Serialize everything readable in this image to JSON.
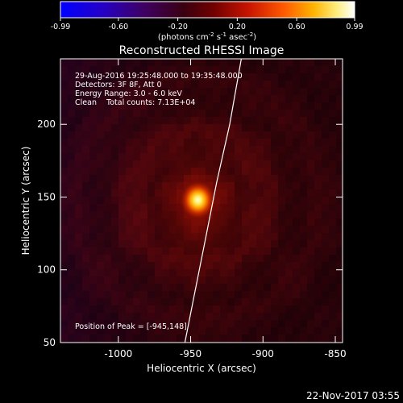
{
  "colorbar": {
    "ticks": [
      "-0.99",
      "-0.60",
      "-0.20",
      "0.20",
      "0.60",
      "0.99"
    ],
    "unit_parts": [
      "(photons cm",
      "-2",
      " s",
      "-1",
      " asec",
      "-2",
      ")"
    ]
  },
  "footer": {
    "timestamp": "22-Nov-2017 03:55"
  },
  "chart_data": {
    "type": "heatmap",
    "title": "Reconstructed RHESSI Image",
    "xlabel": "Heliocentric X (arcsec)",
    "ylabel": "Heliocentric Y (arcsec)",
    "xlim": [
      -1040,
      -845
    ],
    "ylim": [
      50,
      245
    ],
    "xticks": [
      "-1000",
      "-950",
      "-900",
      "-850"
    ],
    "xtick_values": [
      -1000,
      -950,
      -900,
      -850
    ],
    "yticks": [
      "50",
      "100",
      "150",
      "200"
    ],
    "ytick_values": [
      50,
      100,
      150,
      200
    ],
    "value_range": [
      -0.99,
      0.99
    ],
    "colormap": "IDL color table 3 (red temperature)",
    "source_peak": {
      "x": -945,
      "y": 148,
      "value": 0.99
    },
    "annotations": [
      "29-Aug-2016 19:25:48.000 to 19:35:48.000",
      "Detectors: 3F 8F, Att 0",
      "Energy Range: 3.0 - 6.0 keV",
      "Clean    Total counts: 7.13E+04"
    ],
    "peak_label": "Position of Peak = [-945,148]",
    "limb_curve": [
      [
        -954,
        50
      ],
      [
        -948,
        80
      ],
      [
        -940,
        120
      ],
      [
        -932,
        160
      ],
      [
        -923,
        200
      ],
      [
        -915,
        245
      ]
    ]
  }
}
